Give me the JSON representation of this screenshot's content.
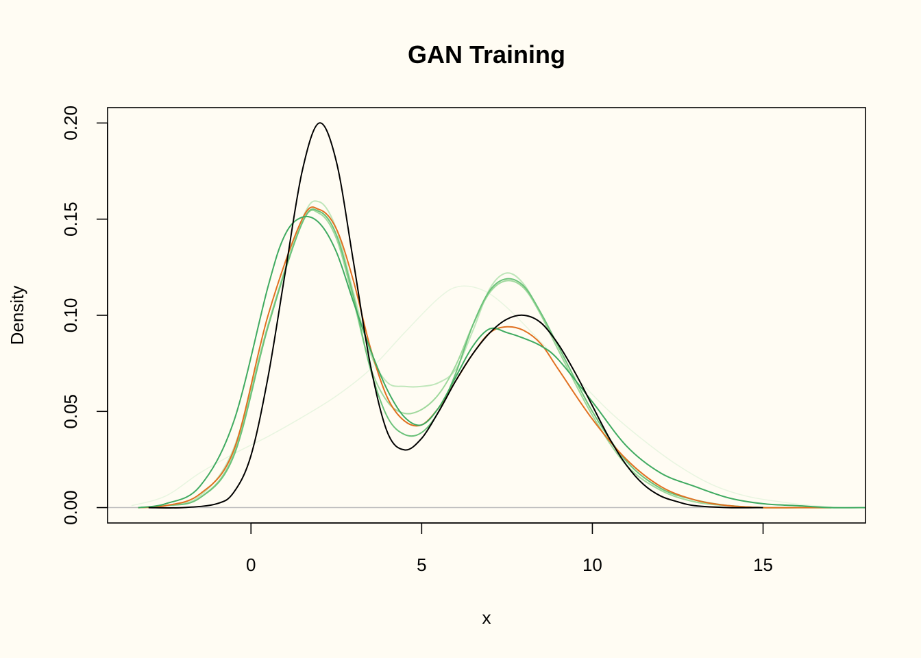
{
  "chart_data": {
    "type": "line",
    "title": "GAN Training",
    "xlabel": "x",
    "ylabel": "Density",
    "xlim": [
      -4.2,
      18
    ],
    "ylim": [
      -0.008,
      0.208
    ],
    "x_ticks": [
      0,
      5,
      10,
      15
    ],
    "y_ticks": [
      0.0,
      0.05,
      0.1,
      0.15,
      0.2
    ],
    "x_tick_labels": [
      "0",
      "5",
      "10",
      "15"
    ],
    "y_tick_labels": [
      "0.00",
      "0.05",
      "0.10",
      "0.15",
      "0.20"
    ],
    "grid": false,
    "baseline": 0,
    "series": [
      {
        "color": "#E8F5E0",
        "stroke_width": 1.5,
        "x": [
          -3.5,
          -2.5,
          -1.5,
          -0.5,
          0.5,
          1.5,
          2.5,
          3.5,
          4.5,
          5.5,
          6.1,
          6.8,
          7.5,
          8.5,
          9.5,
          10.5,
          11.5,
          12.5,
          13.5,
          14.5,
          15.5,
          16.5,
          17.5
        ],
        "y": [
          0.001,
          0.006,
          0.018,
          0.028,
          0.037,
          0.047,
          0.058,
          0.072,
          0.091,
          0.109,
          0.115,
          0.113,
          0.104,
          0.086,
          0.068,
          0.05,
          0.035,
          0.022,
          0.012,
          0.006,
          0.003,
          0.001,
          0.0
        ]
      },
      {
        "color": "#BFE6BA",
        "stroke_width": 2,
        "x": [
          -3.3,
          -2.5,
          -1.5,
          -0.5,
          0.5,
          1.5,
          2.0,
          2.5,
          3.0,
          3.5,
          4.0,
          4.5,
          5.0,
          5.5,
          6.0,
          6.5,
          7.0,
          7.5,
          8.0,
          8.5,
          9.0,
          10.0,
          11.0,
          12.0,
          13.0,
          14.0,
          15.0,
          16.0,
          17.0
        ],
        "y": [
          0.0,
          0.001,
          0.006,
          0.031,
          0.095,
          0.15,
          0.159,
          0.145,
          0.112,
          0.08,
          0.065,
          0.063,
          0.063,
          0.065,
          0.072,
          0.092,
          0.114,
          0.122,
          0.116,
          0.1,
          0.082,
          0.048,
          0.022,
          0.009,
          0.003,
          0.001,
          0.0,
          0.0,
          0.0
        ]
      },
      {
        "color": "#9FD89C",
        "stroke_width": 2,
        "x": [
          -3.3,
          -2.5,
          -1.5,
          -0.5,
          0.5,
          1.5,
          2.0,
          2.5,
          3.0,
          3.5,
          4.0,
          4.5,
          5.0,
          5.5,
          6.0,
          6.5,
          7.0,
          7.5,
          8.0,
          8.5,
          9.0,
          10.0,
          11.0,
          12.0,
          13.0,
          14.0,
          15.0,
          16.0,
          17.0
        ],
        "y": [
          0.0,
          0.001,
          0.005,
          0.028,
          0.095,
          0.148,
          0.153,
          0.14,
          0.108,
          0.073,
          0.055,
          0.049,
          0.051,
          0.059,
          0.074,
          0.095,
          0.112,
          0.118,
          0.114,
          0.1,
          0.082,
          0.048,
          0.022,
          0.009,
          0.003,
          0.001,
          0.0,
          0.0,
          0.0
        ]
      },
      {
        "color": "#6CC27A",
        "stroke_width": 2,
        "x": [
          -3.3,
          -2.5,
          -1.5,
          -0.5,
          0.5,
          1.5,
          2.0,
          2.5,
          3.0,
          3.5,
          4.0,
          4.5,
          5.0,
          5.5,
          6.0,
          6.5,
          7.0,
          7.5,
          8.0,
          8.5,
          9.0,
          10.0,
          11.0,
          12.0,
          13.0,
          14.0,
          15.0,
          16.0,
          17.0
        ],
        "y": [
          0.0,
          0.001,
          0.005,
          0.027,
          0.094,
          0.148,
          0.154,
          0.142,
          0.11,
          0.072,
          0.047,
          0.038,
          0.039,
          0.05,
          0.07,
          0.095,
          0.113,
          0.119,
          0.115,
          0.101,
          0.084,
          0.05,
          0.024,
          0.01,
          0.004,
          0.001,
          0.0,
          0.0,
          0.0
        ]
      },
      {
        "color": "#E07020",
        "stroke_width": 2,
        "x": [
          -3.3,
          -2.5,
          -1.5,
          -0.5,
          0.5,
          1.5,
          2.0,
          2.5,
          3.0,
          3.5,
          4.0,
          4.5,
          5.0,
          5.5,
          6.0,
          6.5,
          7.0,
          7.5,
          8.0,
          8.5,
          9.0,
          10.0,
          11.0,
          12.0,
          13.0,
          14.0,
          15.0,
          16.0,
          17.0
        ],
        "y": [
          0.0,
          0.001,
          0.007,
          0.03,
          0.1,
          0.15,
          0.155,
          0.145,
          0.118,
          0.083,
          0.057,
          0.045,
          0.043,
          0.052,
          0.066,
          0.08,
          0.091,
          0.094,
          0.092,
          0.085,
          0.072,
          0.046,
          0.025,
          0.011,
          0.004,
          0.001,
          0.0,
          0.0,
          0.0
        ]
      },
      {
        "color": "#3FAA60",
        "stroke_width": 2,
        "x": [
          -3.3,
          -2.5,
          -1.5,
          -0.5,
          0.5,
          1.0,
          1.5,
          2.0,
          2.5,
          3.0,
          3.5,
          4.0,
          4.5,
          5.0,
          5.5,
          6.0,
          6.5,
          7.0,
          7.5,
          8.0,
          8.5,
          9.0,
          10.0,
          11.0,
          12.0,
          13.0,
          14.0,
          15.0,
          16.0,
          17.0,
          18.0
        ],
        "y": [
          0.0,
          0.002,
          0.011,
          0.045,
          0.115,
          0.142,
          0.151,
          0.148,
          0.133,
          0.107,
          0.082,
          0.061,
          0.047,
          0.043,
          0.052,
          0.068,
          0.084,
          0.093,
          0.091,
          0.088,
          0.084,
          0.077,
          0.055,
          0.032,
          0.018,
          0.011,
          0.005,
          0.002,
          0.001,
          0.0,
          0.0
        ]
      },
      {
        "color": "#000000",
        "stroke_width": 2,
        "x": [
          -3.0,
          -2.0,
          -1.0,
          -0.5,
          0.0,
          0.5,
          1.0,
          1.5,
          2.0,
          2.5,
          3.0,
          3.5,
          4.0,
          4.5,
          5.0,
          5.5,
          6.0,
          6.5,
          7.0,
          7.5,
          8.0,
          8.5,
          9.0,
          9.5,
          10.0,
          10.5,
          11.0,
          11.5,
          12.0,
          12.5,
          13.0,
          14.0,
          15.0
        ],
        "y": [
          0.0,
          0.0,
          0.002,
          0.008,
          0.027,
          0.068,
          0.122,
          0.175,
          0.2,
          0.18,
          0.128,
          0.074,
          0.039,
          0.03,
          0.036,
          0.05,
          0.066,
          0.08,
          0.091,
          0.098,
          0.1,
          0.096,
          0.085,
          0.07,
          0.053,
          0.036,
          0.022,
          0.012,
          0.006,
          0.003,
          0.001,
          0.0,
          0.0
        ]
      }
    ]
  }
}
